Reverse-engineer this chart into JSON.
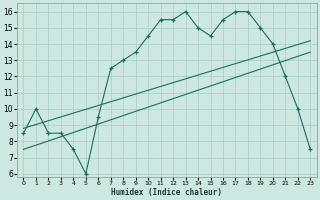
{
  "xlabel": "Humidex (Indice chaleur)",
  "bg_color": "#cce8e0",
  "grid_color": "#a8ccc4",
  "line_color": "#1a6e60",
  "x_ticks": [
    0,
    1,
    2,
    3,
    4,
    5,
    6,
    7,
    8,
    9,
    10,
    11,
    12,
    13,
    14,
    15,
    16,
    17,
    18,
    19,
    20,
    21,
    22,
    23
  ],
  "y_ticks": [
    6,
    7,
    8,
    9,
    10,
    11,
    12,
    13,
    14,
    15,
    16
  ],
  "xlim": [
    -0.5,
    23.5
  ],
  "ylim": [
    5.8,
    16.5
  ],
  "main_x": [
    0,
    1,
    2,
    3,
    4,
    5,
    6,
    7,
    8,
    9,
    10,
    11,
    12,
    13,
    14,
    15,
    16,
    17,
    18,
    19,
    20,
    21,
    22,
    23
  ],
  "main_y": [
    8.5,
    10.0,
    8.5,
    8.5,
    7.5,
    6.0,
    9.5,
    12.5,
    13.0,
    13.5,
    14.5,
    15.5,
    15.5,
    16.0,
    15.0,
    14.5,
    15.5,
    16.0,
    16.0,
    15.0,
    14.0,
    12.0,
    10.0,
    7.5
  ],
  "line1_x": [
    0,
    23
  ],
  "line1_y": [
    8.8,
    14.2
  ],
  "line2_x": [
    0,
    23
  ],
  "line2_y": [
    7.5,
    13.5
  ]
}
